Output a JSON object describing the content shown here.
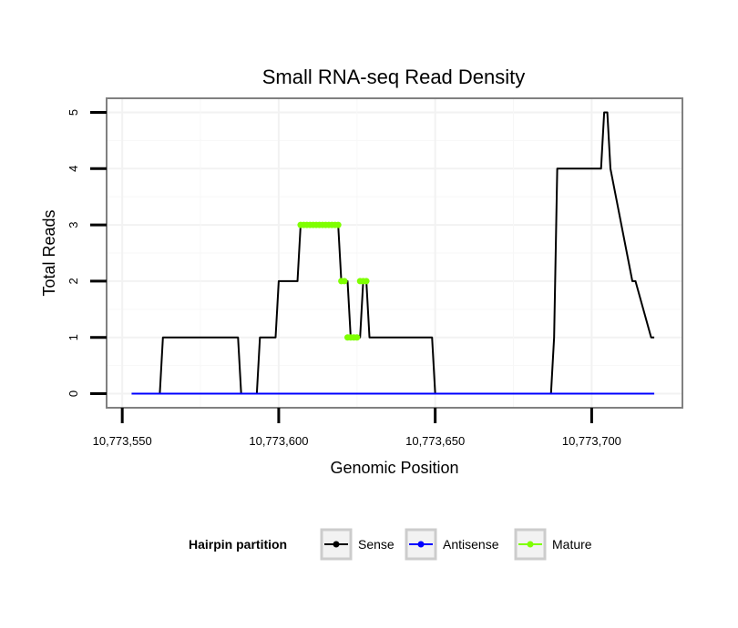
{
  "chart_data": {
    "type": "line",
    "title": "Small RNA-seq Read Density",
    "xlabel": "Genomic Position",
    "ylabel": "Total Reads",
    "xlim": [
      10773545,
      10773729
    ],
    "ylim": [
      -0.25,
      5.25
    ],
    "x_ticks": [
      10773550,
      10773600,
      10773650,
      10773700
    ],
    "x_tick_labels": [
      "10,773,550",
      "10,773,600",
      "10,773,650",
      "10,773,700"
    ],
    "y_ticks": [
      0,
      1,
      2,
      3,
      4,
      5
    ],
    "y_tick_labels": [
      "0",
      "1",
      "2",
      "3",
      "4",
      "5"
    ],
    "grid": true,
    "legend": {
      "title": "Hairpin partition",
      "position": "bottom",
      "entries": [
        {
          "name": "Sense",
          "color": "#000000"
        },
        {
          "name": "Antisense",
          "color": "#0000ff"
        },
        {
          "name": "Mature",
          "color": "#7fff00"
        }
      ]
    },
    "series": [
      {
        "name": "Sense",
        "color": "#000000",
        "x": [
          10773553,
          10773562,
          10773563,
          10773587,
          10773588,
          10773593,
          10773594,
          10773599,
          10773600,
          10773603,
          10773604,
          10773606,
          10773607,
          10773619,
          10773620,
          10773622,
          10773623,
          10773626,
          10773627,
          10773628,
          10773629,
          10773649,
          10773650,
          10773687,
          10773688,
          10773689,
          10773703,
          10773704,
          10773705,
          10773706,
          10773713,
          10773714,
          10773719,
          10773720
        ],
        "values": [
          0,
          0,
          1,
          1,
          0,
          0,
          1,
          1,
          2,
          2,
          2,
          2,
          3,
          3,
          2,
          2,
          1,
          1,
          2,
          2,
          1,
          1,
          0,
          0,
          1,
          4,
          4,
          5,
          5,
          4,
          2,
          2,
          1,
          1
        ]
      },
      {
        "name": "Antisense",
        "color": "#0000ff",
        "x": [
          10773553,
          10773720
        ],
        "values": [
          0,
          0
        ]
      },
      {
        "name": "Mature",
        "color": "#7fff00",
        "x": [
          10773607,
          10773608,
          10773609,
          10773610,
          10773611,
          10773612,
          10773613,
          10773614,
          10773615,
          10773616,
          10773617,
          10773618,
          10773619,
          10773620,
          10773621,
          10773622,
          10773623,
          10773624,
          10773625,
          10773626,
          10773627,
          10773628
        ],
        "values": [
          3,
          3,
          3,
          3,
          3,
          3,
          3,
          3,
          3,
          3,
          3,
          3,
          3,
          2,
          2,
          1,
          1,
          1,
          1,
          2,
          2,
          2
        ],
        "segments": [
          [
            0,
            12
          ],
          [
            13,
            14
          ],
          [
            15,
            18
          ],
          [
            19,
            21
          ]
        ]
      }
    ]
  }
}
